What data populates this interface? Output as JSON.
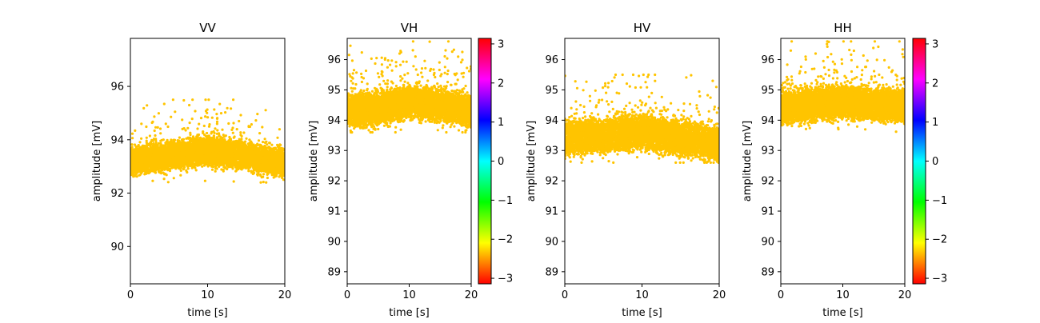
{
  "chart_data": [
    {
      "type": "scatter",
      "title": "VV",
      "xlabel": "time [s]",
      "ylabel": "amplitude [mV]",
      "xlim": [
        0,
        20
      ],
      "ylim": [
        88.6,
        97.8
      ],
      "xticks": [
        0,
        10,
        20
      ],
      "yticks": [
        90,
        92,
        94,
        96
      ],
      "point_color": "#ffc400",
      "n_points": 6000,
      "series": [
        {
          "band_center": [
            [
              0,
              93.2
            ],
            [
              5,
              93.4
            ],
            [
              10,
              93.6
            ],
            [
              15,
              93.4
            ],
            [
              20,
              93.1
            ]
          ],
          "band_halfwidth": 0.45,
          "outlier_range": [
            92.4,
            95.5
          ]
        }
      ],
      "colorbar": null
    },
    {
      "type": "scatter",
      "title": "VH",
      "xlabel": "time [s]",
      "ylabel": "amplitude [mV]",
      "xlim": [
        0,
        20
      ],
      "ylim": [
        88.6,
        96.7
      ],
      "xticks": [
        0,
        10,
        20
      ],
      "yticks": [
        89,
        90,
        91,
        92,
        93,
        94,
        95,
        96
      ],
      "point_color": "#ffc400",
      "n_points": 6000,
      "series": [
        {
          "band_center": [
            [
              0,
              94.3
            ],
            [
              5,
              94.4
            ],
            [
              10,
              94.6
            ],
            [
              15,
              94.5
            ],
            [
              20,
              94.3
            ]
          ],
          "band_halfwidth": 0.45,
          "outlier_range": [
            93.6,
            96.6
          ]
        }
      ],
      "colorbar": {
        "min": -3.14159,
        "max": 3.14159,
        "ticks": [
          3,
          2,
          1,
          0,
          -1,
          -2,
          -3
        ],
        "tick_labels": [
          "3",
          "2",
          "1",
          "0",
          "−1",
          "−2",
          "−3"
        ],
        "colormap": [
          "#ff0000",
          "#ffff00",
          "#00ff00",
          "#00ffff",
          "#0000ff",
          "#ff00ff",
          "#ff0000"
        ]
      }
    },
    {
      "type": "scatter",
      "title": "HV",
      "xlabel": "time [s]",
      "ylabel": "amplitude [mV]",
      "xlim": [
        0,
        20
      ],
      "ylim": [
        88.6,
        96.7
      ],
      "xticks": [
        0,
        10,
        20
      ],
      "yticks": [
        89,
        90,
        91,
        92,
        93,
        94,
        95,
        96
      ],
      "point_color": "#ffc400",
      "n_points": 6000,
      "series": [
        {
          "band_center": [
            [
              0,
              93.4
            ],
            [
              5,
              93.5
            ],
            [
              10,
              93.6
            ],
            [
              15,
              93.4
            ],
            [
              20,
              93.2
            ]
          ],
          "band_halfwidth": 0.5,
          "outlier_range": [
            92.6,
            95.5
          ]
        }
      ],
      "colorbar": null
    },
    {
      "type": "scatter",
      "title": "HH",
      "xlabel": "time [s]",
      "ylabel": "amplitude [mV]",
      "xlim": [
        0,
        20
      ],
      "ylim": [
        88.6,
        96.7
      ],
      "xticks": [
        0,
        10,
        20
      ],
      "yticks": [
        89,
        90,
        91,
        92,
        93,
        94,
        95,
        96
      ],
      "point_color": "#ffc400",
      "n_points": 6000,
      "series": [
        {
          "band_center": [
            [
              0,
              94.4
            ],
            [
              5,
              94.5
            ],
            [
              10,
              94.6
            ],
            [
              15,
              94.5
            ],
            [
              20,
              94.5
            ]
          ],
          "band_halfwidth": 0.45,
          "outlier_range": [
            93.5,
            96.6
          ]
        }
      ],
      "colorbar": {
        "min": -3.14159,
        "max": 3.14159,
        "ticks": [
          3,
          2,
          1,
          0,
          -1,
          -2,
          -3
        ],
        "tick_labels": [
          "3",
          "2",
          "1",
          "0",
          "−1",
          "−2",
          "−3"
        ],
        "colormap": [
          "#ff0000",
          "#ffff00",
          "#00ff00",
          "#00ffff",
          "#0000ff",
          "#ff00ff",
          "#ff0000"
        ]
      }
    }
  ]
}
